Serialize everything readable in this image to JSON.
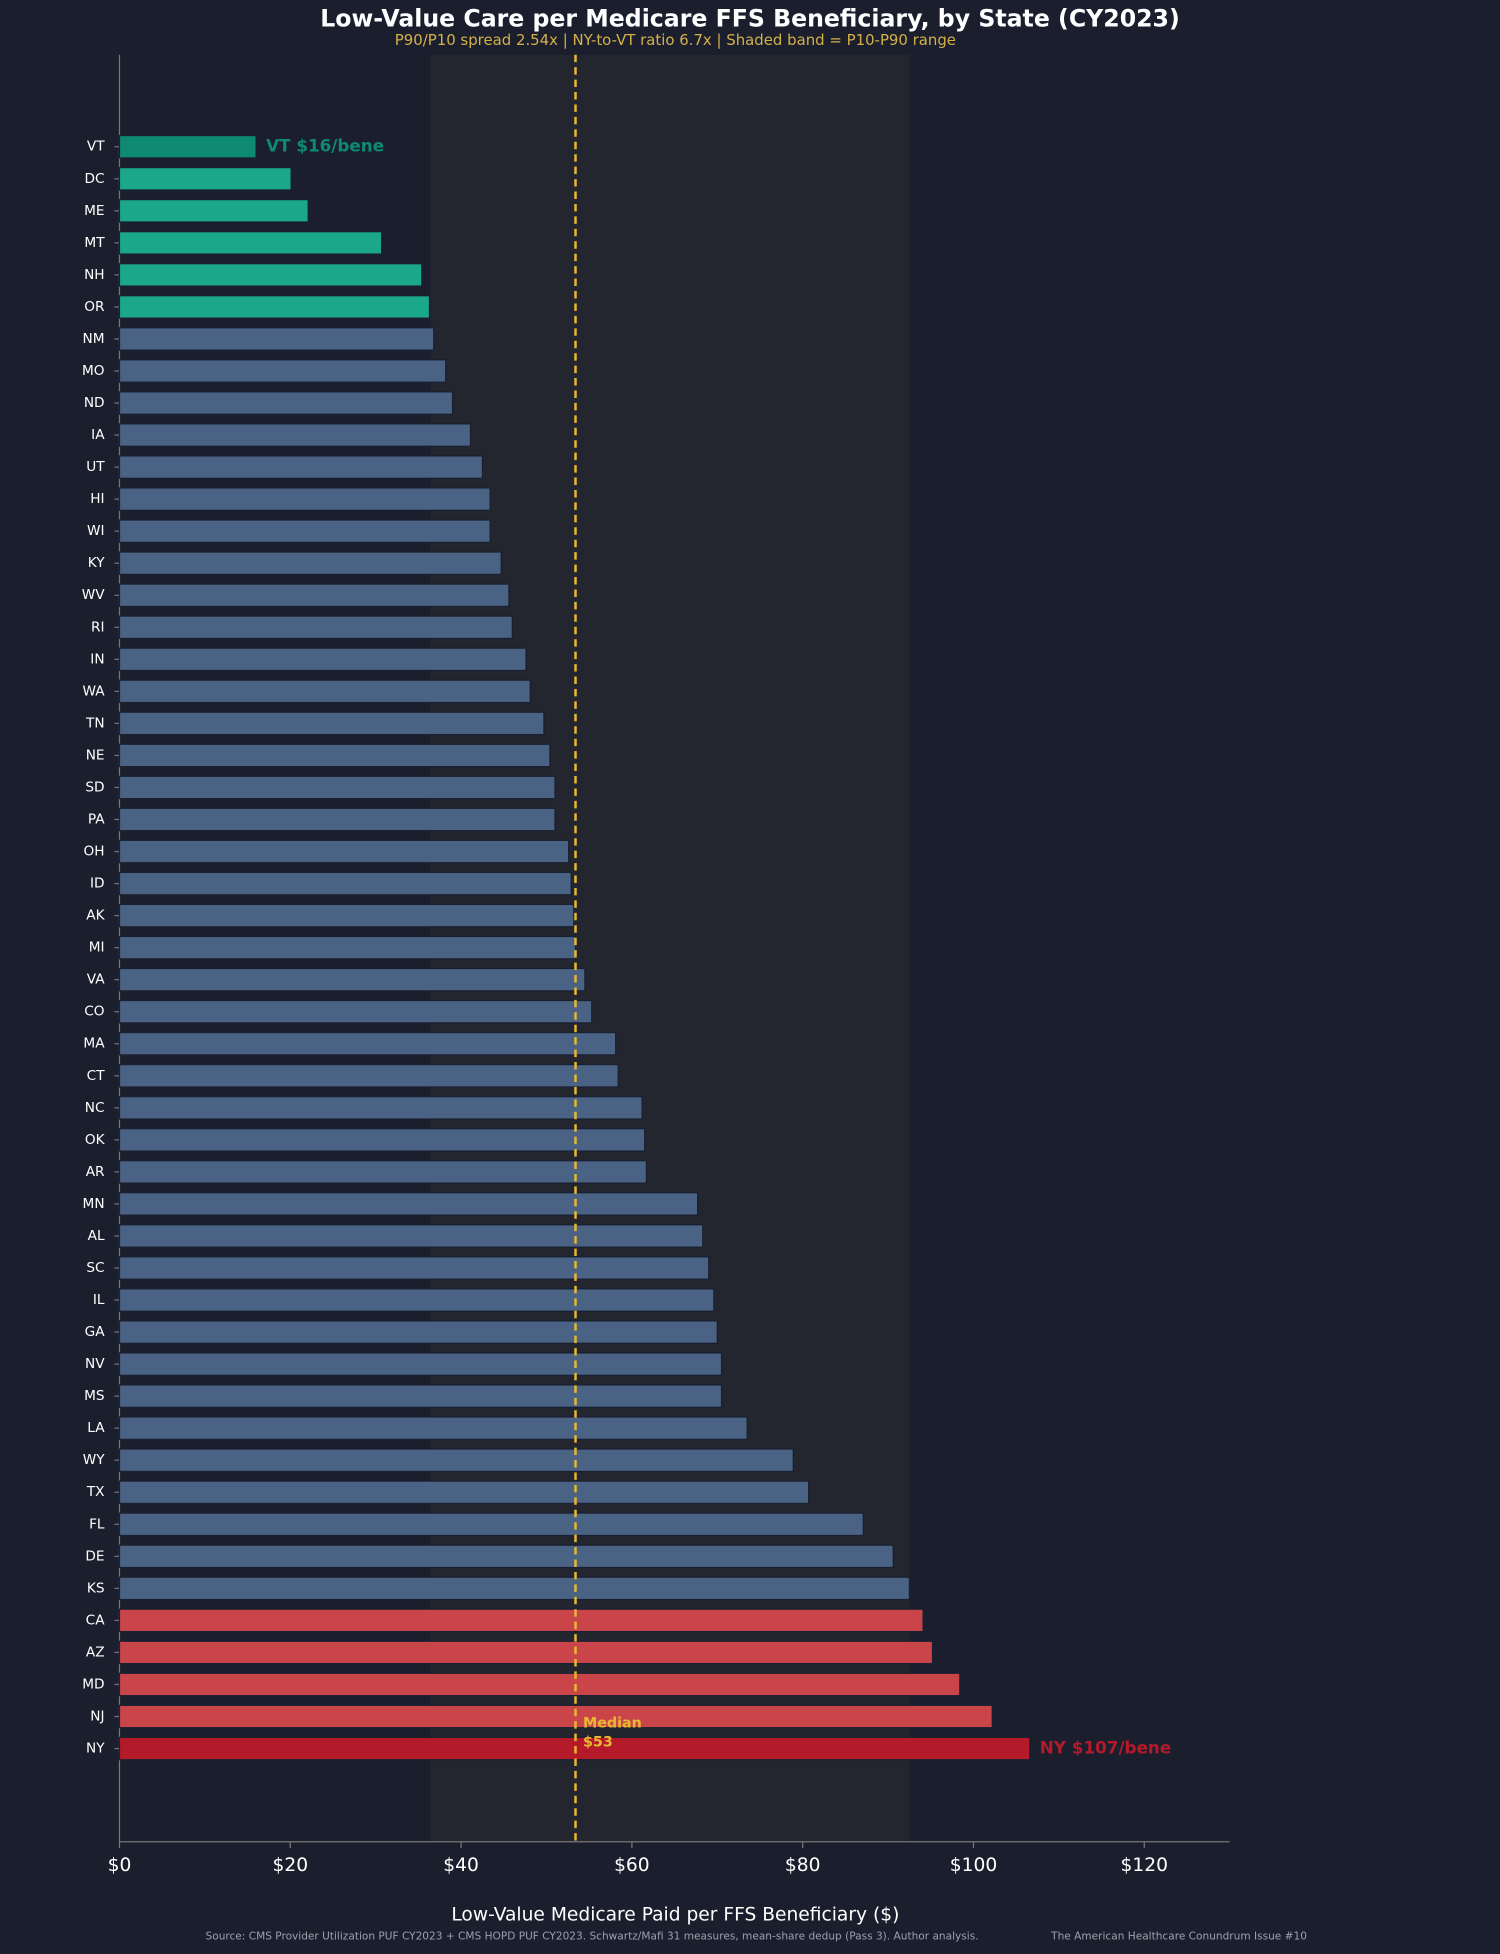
{
  "chart_data": {
    "type": "bar",
    "orientation": "horizontal",
    "title": "Low-Value Care per Medicare FFS Beneficiary, by State (CY2023)",
    "subtitle": "P90/P10 spread 2.54x  |  NY-to-VT ratio 6.7x  |  Shaded band = P10-P90 range",
    "x_label": "Low-Value Medicare Paid per FFS Beneficiary ($)",
    "source": "Source: CMS Provider Utilization PUF CY2023 + CMS HOPD PUF CY2023. Schwartz/Mafi 31 measures, mean-share dedup (Pass 3). Author analysis.",
    "credit": "The American Healthcare Conundrum  Issue #10",
    "categories": [
      "VT",
      "DC",
      "ME",
      "MT",
      "NH",
      "OR",
      "NM",
      "MO",
      "ND",
      "IA",
      "UT",
      "HI",
      "WI",
      "KY",
      "WV",
      "RI",
      "IN",
      "WA",
      "TN",
      "NE",
      "SD",
      "PA",
      "OH",
      "ID",
      "AK",
      "MI",
      "VA",
      "CO",
      "MA",
      "CT",
      "NC",
      "OK",
      "AR",
      "MN",
      "AL",
      "SC",
      "IL",
      "GA",
      "NV",
      "MS",
      "LA",
      "WY",
      "TX",
      "FL",
      "DE",
      "KS",
      "CA",
      "AZ",
      "MD",
      "NJ",
      "NY"
    ],
    "values": [
      16.0,
      20.1,
      22.1,
      30.7,
      35.4,
      36.3,
      36.8,
      38.2,
      39.0,
      41.1,
      42.5,
      43.4,
      43.4,
      44.7,
      45.6,
      46.0,
      47.6,
      48.1,
      49.7,
      50.4,
      51.0,
      51.0,
      52.6,
      52.9,
      53.2,
      53.4,
      54.5,
      55.3,
      58.1,
      58.4,
      61.2,
      61.5,
      61.7,
      67.7,
      68.3,
      69.0,
      69.6,
      70.0,
      70.5,
      70.5,
      73.5,
      78.9,
      80.7,
      87.1,
      90.6,
      92.5,
      94.1,
      95.2,
      98.4,
      102.2,
      106.6
    ],
    "colors": [
      "#0f8a72",
      "#1ba88a",
      "#1ba88a",
      "#1ba88a",
      "#1ba88a",
      "#1ba88a",
      "#4a6284",
      "#4a6284",
      "#4a6284",
      "#4a6284",
      "#4a6284",
      "#4a6284",
      "#4a6284",
      "#4a6284",
      "#4a6284",
      "#4a6284",
      "#4a6284",
      "#4a6284",
      "#4a6284",
      "#4a6284",
      "#4a6284",
      "#4a6284",
      "#4a6284",
      "#4a6284",
      "#4a6284",
      "#4a6284",
      "#4a6284",
      "#4a6284",
      "#4a6284",
      "#4a6284",
      "#4a6284",
      "#4a6284",
      "#4a6284",
      "#4a6284",
      "#4a6284",
      "#4a6284",
      "#4a6284",
      "#4a6284",
      "#4a6284",
      "#4a6284",
      "#4a6284",
      "#4a6284",
      "#4a6284",
      "#4a6284",
      "#4a6284",
      "#4a6284",
      "#c9454a",
      "#c9454a",
      "#c9454a",
      "#c9454a",
      "#b51a2a"
    ],
    "bar_annotations": [
      {
        "category": "VT",
        "text": "VT  $16/bene",
        "color": "#0f8a72"
      },
      {
        "category": "NY",
        "text": "NY  $107/bene",
        "color": "#b51a2a"
      }
    ],
    "median": {
      "value": 53.4,
      "label": [
        "Median",
        "$53"
      ],
      "color": "#e8b830"
    },
    "band": {
      "p10": 36.4,
      "p90": 92.5
    },
    "xlim": [
      0,
      130
    ],
    "xticks": [
      {
        "value": 0,
        "label": "$0"
      },
      {
        "value": 20,
        "label": "$20"
      },
      {
        "value": 40,
        "label": "$40"
      },
      {
        "value": 60,
        "label": "$60"
      },
      {
        "value": 80,
        "label": "$80"
      },
      {
        "value": 100,
        "label": "$100"
      },
      {
        "value": 120,
        "label": "$120"
      }
    ]
  }
}
